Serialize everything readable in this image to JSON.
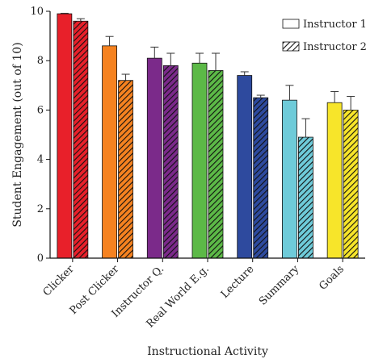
{
  "chart_data": {
    "type": "bar",
    "xlabel": "Instructional Activity",
    "ylabel": "Student Engagement (out of 10)",
    "ylim": [
      0,
      10
    ],
    "yticks": [
      0,
      2,
      4,
      6,
      8,
      10
    ],
    "grid": false,
    "legend_position": "top-right",
    "categories": [
      "Clicker",
      "Post Clicker",
      "Instructor Q.",
      "Real World E.g.",
      "Lecture",
      "Summary",
      "Goals"
    ],
    "category_colors": [
      "#e8202a",
      "#f58220",
      "#7b2a8a",
      "#5cb947",
      "#2e4a9e",
      "#6ecbd9",
      "#f7e52a"
    ],
    "series": [
      {
        "name": "Instructor 1",
        "pattern": "solid",
        "values": [
          9.9,
          8.6,
          8.1,
          7.9,
          7.4,
          6.4,
          6.3
        ],
        "errors": [
          0.02,
          0.38,
          0.45,
          0.4,
          0.15,
          0.6,
          0.45
        ]
      },
      {
        "name": "Instructor 2",
        "pattern": "hatched",
        "values": [
          9.6,
          7.2,
          7.8,
          7.6,
          6.5,
          4.9,
          6.0
        ],
        "errors": [
          0.1,
          0.25,
          0.5,
          0.7,
          0.1,
          0.75,
          0.55
        ]
      }
    ]
  }
}
